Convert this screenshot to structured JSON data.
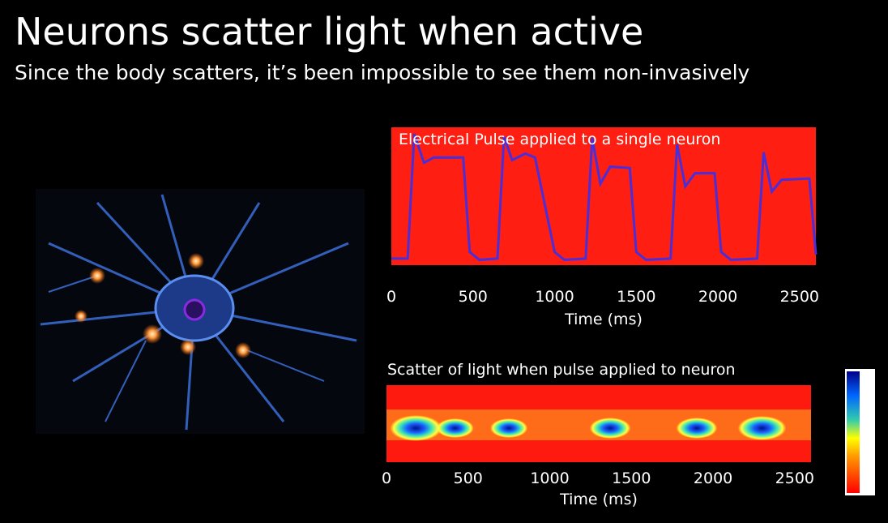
{
  "title": "Neurons scatter light when active",
  "subtitle": "Since the body scatters, it’s been impossible to see them non-invasively",
  "chart_data": [
    {
      "type": "line",
      "title": "Electrical Pulse applied to a single neuron",
      "xlabel": "Time (ms)",
      "xlim": [
        0,
        2600
      ],
      "xticks": [
        0,
        500,
        1000,
        1500,
        2000,
        2500
      ],
      "ylim": [
        0,
        1.05
      ],
      "color": "#4a2fd8",
      "background": "#ff1e12",
      "x": [
        0,
        100,
        140,
        200,
        260,
        440,
        480,
        540,
        650,
        690,
        740,
        820,
        880,
        1000,
        1060,
        1190,
        1230,
        1280,
        1340,
        1460,
        1500,
        1560,
        1710,
        1750,
        1800,
        1860,
        1980,
        2020,
        2080,
        2240,
        2280,
        2330,
        2390,
        2560,
        2600
      ],
      "values": [
        0.05,
        0.05,
        1.0,
        0.78,
        0.82,
        0.82,
        0.1,
        0.04,
        0.05,
        0.98,
        0.8,
        0.85,
        0.82,
        0.1,
        0.04,
        0.05,
        0.97,
        0.62,
        0.75,
        0.74,
        0.1,
        0.04,
        0.05,
        0.92,
        0.6,
        0.7,
        0.7,
        0.1,
        0.04,
        0.05,
        0.86,
        0.56,
        0.65,
        0.66,
        0.08
      ]
    },
    {
      "type": "heatmap",
      "title": "Scatter of light when pulse applied to neuron",
      "xlabel": "Time (ms)",
      "xlim": [
        0,
        2600
      ],
      "xticks": [
        0,
        500,
        1000,
        1500,
        2000,
        2500
      ],
      "x": [
        180,
        420,
        750,
        1370,
        1900,
        2300
      ],
      "values": [
        1.0,
        0.6,
        0.6,
        0.7,
        0.7,
        0.9
      ]
    }
  ]
}
